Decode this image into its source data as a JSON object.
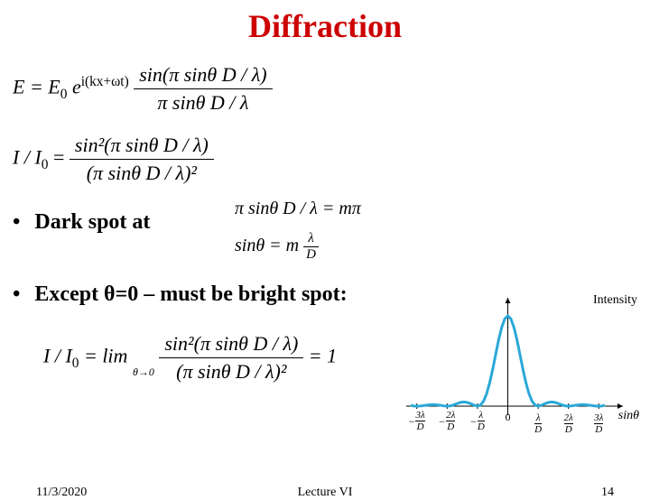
{
  "title": {
    "text": "Diffraction",
    "color": "#cc0000",
    "fontsize": 36
  },
  "equations": {
    "efield_lhs": "E = E",
    "efield_sub0": "0",
    "efield_exp_prefix": "e",
    "efield_exp": "i(kx+ωt)",
    "efield_num": "sin(π sinθ D / λ)",
    "efield_den": "π sinθ D / λ",
    "intensity_lhs": "I / I",
    "intensity_sub0": "0",
    "intensity_num": "sin²(π sinθ D / λ)",
    "intensity_den": "(π sinθ D / λ)²",
    "darkspot_eq1": "π sinθ D / λ = mπ",
    "darkspot_eq2_lhs": "sinθ = m",
    "darkspot_eq2_num": "λ",
    "darkspot_eq2_den": "D",
    "limit_lhs": "I / I",
    "limit_sub0": "0",
    "limit_eq": " = lim",
    "limit_under": "θ→0",
    "limit_num": "sin²(π sinθ D / λ)",
    "limit_den": "(π sinθ D / λ)²",
    "limit_result": " = 1"
  },
  "bullets": {
    "dark_spot": "Dark spot at",
    "except": "Except θ=0 – must be bright spot:"
  },
  "chart": {
    "type": "line",
    "y_label": "Intensity",
    "x_label": "sinθ",
    "curve_color": "#2aa8d8",
    "curve_width": 3,
    "axis_color": "#000000",
    "xlim": [
      -3.2,
      3.2
    ],
    "ylim": [
      -0.05,
      1.05
    ],
    "xticks": [
      {
        "pos": -3,
        "num": "3λ",
        "den": "D",
        "neg": true
      },
      {
        "pos": -2,
        "num": "2λ",
        "den": "D",
        "neg": true
      },
      {
        "pos": -1,
        "num": "λ",
        "den": "D",
        "neg": true
      },
      {
        "pos": 0,
        "label": "0"
      },
      {
        "pos": 1,
        "num": "λ",
        "den": "D"
      },
      {
        "pos": 2,
        "num": "2λ",
        "den": "D"
      },
      {
        "pos": 3,
        "num": "3λ",
        "den": "D"
      }
    ],
    "points": [
      [
        -3.2,
        0.009
      ],
      [
        -3.1,
        0.001
      ],
      [
        -3.0,
        0.0
      ],
      [
        -2.9,
        0.001
      ],
      [
        -2.8,
        0.005
      ],
      [
        -2.7,
        0.01
      ],
      [
        -2.6,
        0.014
      ],
      [
        -2.5,
        0.016
      ],
      [
        -2.4,
        0.016
      ],
      [
        -2.3,
        0.013
      ],
      [
        -2.2,
        0.008
      ],
      [
        -2.1,
        0.002
      ],
      [
        -2.0,
        0.0
      ],
      [
        -1.9,
        0.003
      ],
      [
        -1.8,
        0.012
      ],
      [
        -1.7,
        0.025
      ],
      [
        -1.6,
        0.037
      ],
      [
        -1.5,
        0.045
      ],
      [
        -1.4,
        0.045
      ],
      [
        -1.3,
        0.037
      ],
      [
        -1.2,
        0.024
      ],
      [
        -1.1,
        0.009
      ],
      [
        -1.0,
        0.0
      ],
      [
        -0.9,
        0.012
      ],
      [
        -0.8,
        0.055
      ],
      [
        -0.7,
        0.136
      ],
      [
        -0.6,
        0.255
      ],
      [
        -0.5,
        0.405
      ],
      [
        -0.4,
        0.573
      ],
      [
        -0.3,
        0.738
      ],
      [
        -0.2,
        0.875
      ],
      [
        -0.1,
        0.968
      ],
      [
        0.0,
        1.0
      ],
      [
        0.1,
        0.968
      ],
      [
        0.2,
        0.875
      ],
      [
        0.3,
        0.738
      ],
      [
        0.4,
        0.573
      ],
      [
        0.5,
        0.405
      ],
      [
        0.6,
        0.255
      ],
      [
        0.7,
        0.136
      ],
      [
        0.8,
        0.055
      ],
      [
        0.9,
        0.012
      ],
      [
        1.0,
        0.0
      ],
      [
        1.1,
        0.009
      ],
      [
        1.2,
        0.024
      ],
      [
        1.3,
        0.037
      ],
      [
        1.4,
        0.045
      ],
      [
        1.5,
        0.045
      ],
      [
        1.6,
        0.037
      ],
      [
        1.7,
        0.025
      ],
      [
        1.8,
        0.012
      ],
      [
        1.9,
        0.003
      ],
      [
        2.0,
        0.0
      ],
      [
        2.1,
        0.002
      ],
      [
        2.2,
        0.008
      ],
      [
        2.3,
        0.013
      ],
      [
        2.4,
        0.016
      ],
      [
        2.5,
        0.016
      ],
      [
        2.6,
        0.014
      ],
      [
        2.7,
        0.01
      ],
      [
        2.8,
        0.005
      ],
      [
        2.9,
        0.001
      ],
      [
        3.0,
        0.0
      ],
      [
        3.1,
        0.001
      ],
      [
        3.2,
        0.009
      ]
    ]
  },
  "footer": {
    "date": "11/3/2020",
    "center": "Lecture VI",
    "page": "14"
  }
}
